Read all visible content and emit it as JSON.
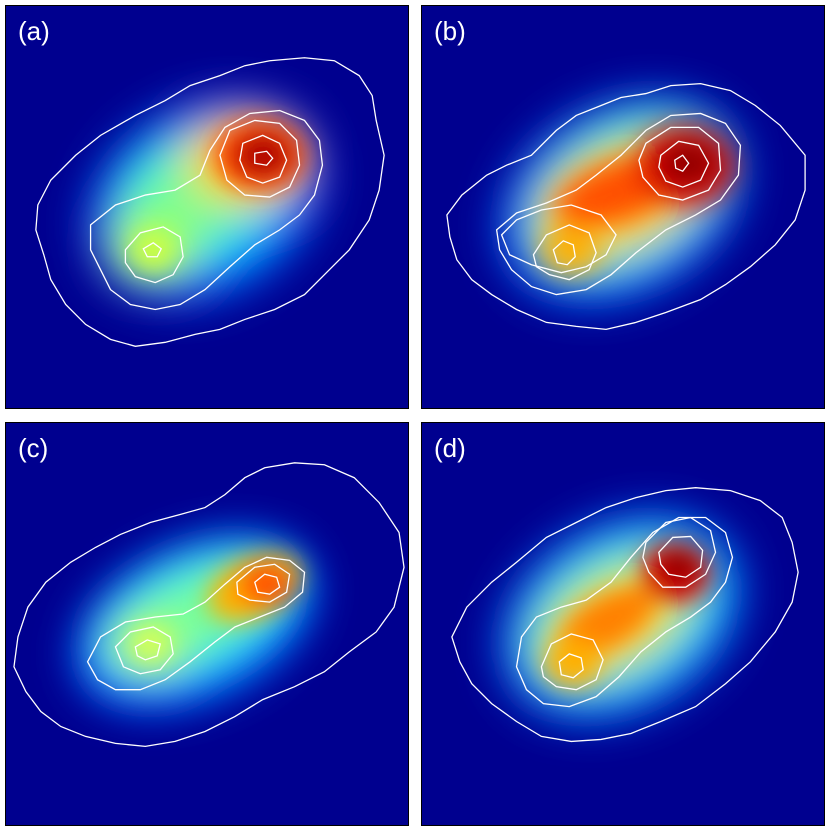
{
  "colors": {
    "background": "#00008f",
    "contour": "#ffffff",
    "colormap": [
      "#00008f",
      "#0000ff",
      "#00c0ff",
      "#40ffbf",
      "#ffff00",
      "#ff8000",
      "#ff0000",
      "#800000"
    ]
  },
  "panels": [
    {
      "label": "(a)"
    },
    {
      "label": "(b)"
    },
    {
      "label": "(c)"
    },
    {
      "label": "(d)"
    }
  ]
}
